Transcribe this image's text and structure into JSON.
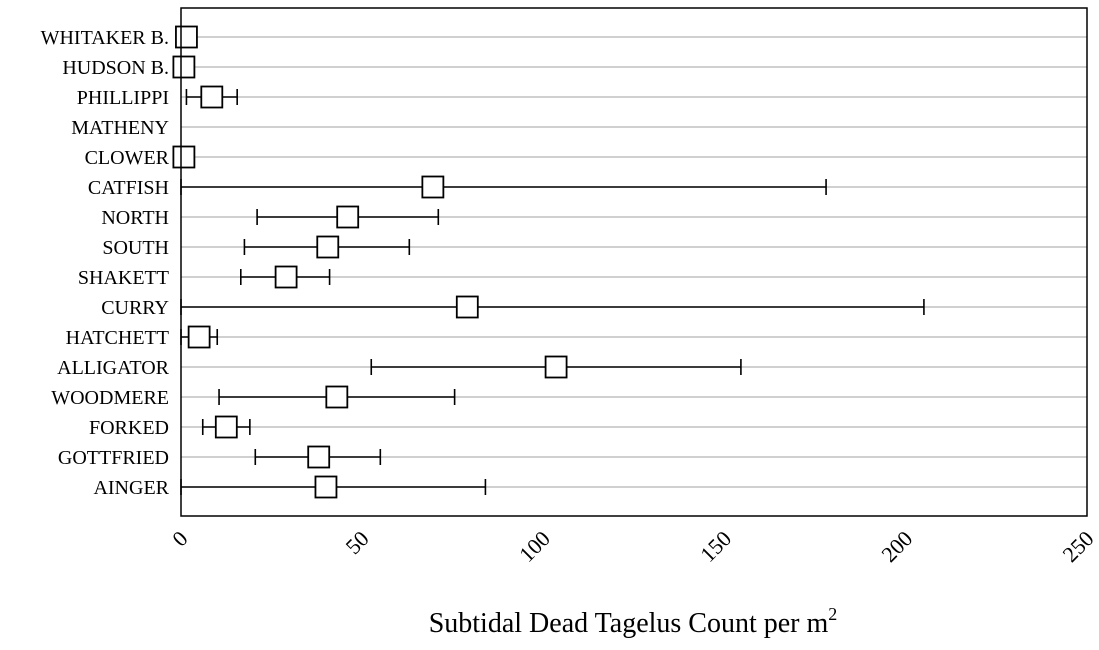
{
  "chart_data": {
    "type": "scatter",
    "orientation": "horizontal",
    "xlabel": "Subtidal Dead Tagelus Count per m",
    "xlabel_superscript": "2",
    "xlim": [
      0,
      250
    ],
    "xticks": [
      "0",
      "50",
      "100",
      "150",
      "200",
      "250"
    ],
    "grid": "horizontal",
    "marker": "open-square",
    "categories": [
      "WHITAKER B.",
      "HUDSON B.",
      "PHILLIPPI",
      "MATHENY",
      "CLOWER",
      "CATFISH",
      "NORTH",
      "SOUTH",
      "SHAKETT",
      "CURRY",
      "HATCHETT",
      "ALLIGATOR",
      "WOODMERE",
      "FORKED",
      "GOTTFRIED",
      "AINGER"
    ],
    "series": [
      {
        "points": [
          {
            "site": "WHITAKER B.",
            "mean": 1.5,
            "low": null,
            "high": null
          },
          {
            "site": "HUDSON B.",
            "mean": 0.8,
            "low": null,
            "high": null
          },
          {
            "site": "PHILLIPPI",
            "mean": 8.5,
            "low": 1.5,
            "high": 15.5
          },
          {
            "site": "MATHENY",
            "mean": null,
            "low": null,
            "high": null
          },
          {
            "site": "CLOWER",
            "mean": 0.8,
            "low": null,
            "high": null
          },
          {
            "site": "CATFISH",
            "mean": 69.5,
            "low": 0,
            "high": 178
          },
          {
            "site": "NORTH",
            "mean": 46,
            "low": 21,
            "high": 71
          },
          {
            "site": "SOUTH",
            "mean": 40.5,
            "low": 17.5,
            "high": 63
          },
          {
            "site": "SHAKETT",
            "mean": 29,
            "low": 16.5,
            "high": 41
          },
          {
            "site": "CURRY",
            "mean": 79,
            "low": 0,
            "high": 205
          },
          {
            "site": "HATCHETT",
            "mean": 5,
            "low": 0,
            "high": 10
          },
          {
            "site": "ALLIGATOR",
            "mean": 103.5,
            "low": 52.5,
            "high": 154.5
          },
          {
            "site": "WOODMERE",
            "mean": 43,
            "low": 10.5,
            "high": 75.5
          },
          {
            "site": "FORKED",
            "mean": 12.5,
            "low": 6,
            "high": 19
          },
          {
            "site": "GOTTFRIED",
            "mean": 38,
            "low": 20.5,
            "high": 55
          },
          {
            "site": "AINGER",
            "mean": 40,
            "low": 0,
            "high": 84
          }
        ]
      }
    ]
  }
}
